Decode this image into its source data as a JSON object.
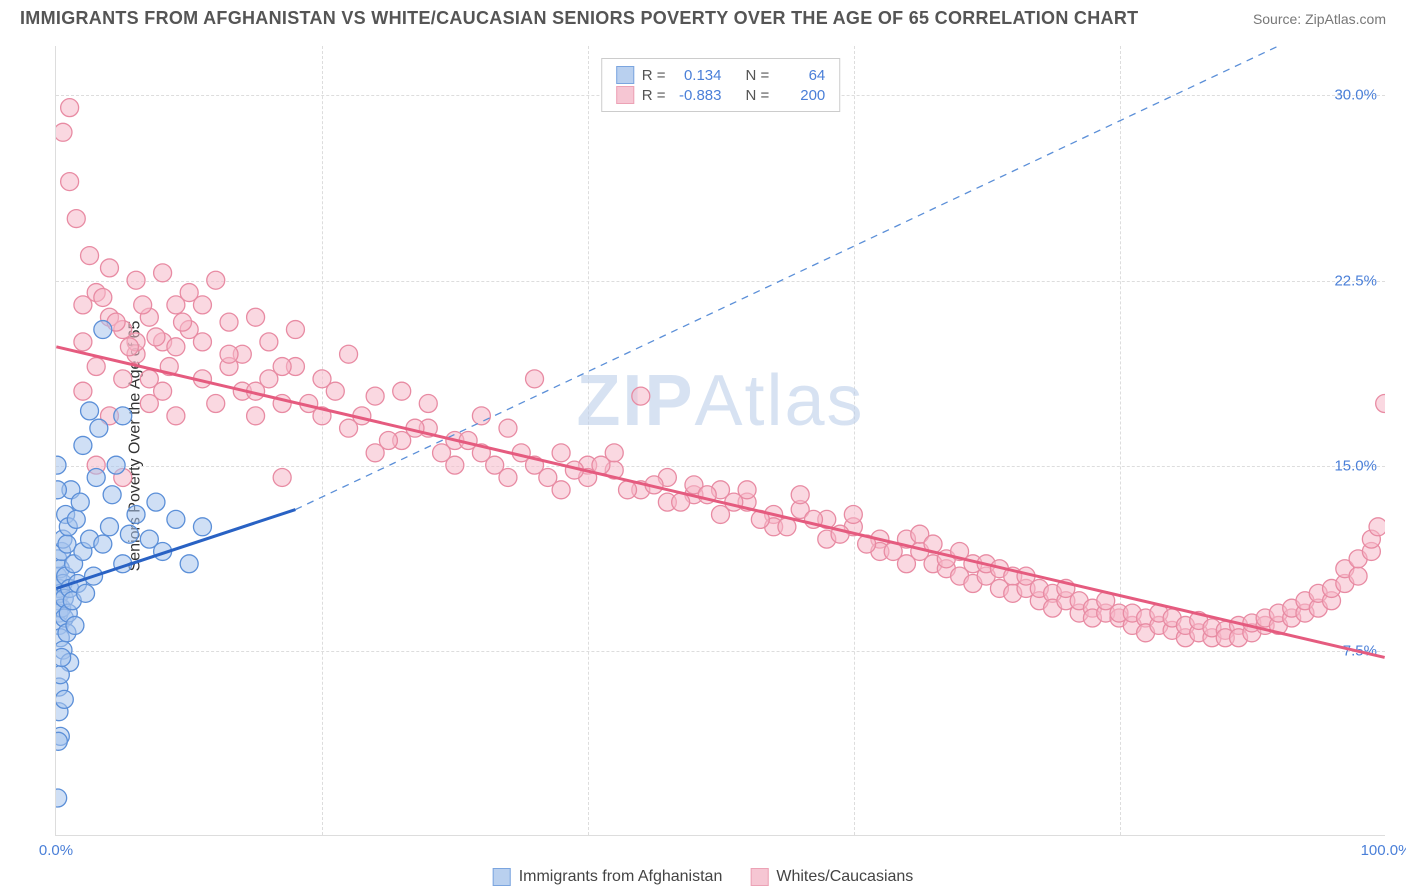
{
  "title": "IMMIGRANTS FROM AFGHANISTAN VS WHITE/CAUCASIAN SENIORS POVERTY OVER THE AGE OF 65 CORRELATION CHART",
  "source_label": "Source: ZipAtlas.com",
  "y_axis_label": "Seniors Poverty Over the Age of 65",
  "watermark_bold": "ZIP",
  "watermark_light": "Atlas",
  "chart": {
    "type": "scatter",
    "xlim": [
      0,
      100
    ],
    "ylim": [
      0,
      32
    ],
    "x_ticks": [
      0,
      20,
      40,
      60,
      80,
      100
    ],
    "x_tick_labels": {
      "0": "0.0%",
      "100": "100.0%"
    },
    "y_ticks": [
      7.5,
      15.0,
      22.5,
      30.0
    ],
    "y_tick_labels": [
      "7.5%",
      "15.0%",
      "22.5%",
      "30.0%"
    ],
    "grid_color": "#dddddd",
    "background_color": "#ffffff",
    "series": [
      {
        "name": "Immigrants from Afghanistan",
        "legend_label": "Immigrants from Afghanistan",
        "marker_color": "#5b8fd8",
        "marker_fill": "#a8c5ec",
        "marker_fill_opacity": 0.55,
        "marker_radius": 9,
        "stats": {
          "R": "0.134",
          "N": "64"
        },
        "trend_solid": {
          "x1": 0,
          "y1": 10.0,
          "x2": 18,
          "y2": 13.2,
          "color": "#2962c4",
          "width": 3
        },
        "trend_dashed": {
          "x1": 18,
          "y1": 13.2,
          "x2": 92,
          "y2": 32.0,
          "color": "#5b8fd8",
          "width": 1.3,
          "dash": "7 6"
        },
        "points": [
          [
            0.1,
            10.5
          ],
          [
            0.1,
            9.5
          ],
          [
            0.1,
            11.2
          ],
          [
            0.2,
            9.0
          ],
          [
            0.2,
            10.0
          ],
          [
            0.2,
            8.5
          ],
          [
            0.3,
            9.8
          ],
          [
            0.3,
            10.8
          ],
          [
            0.3,
            8.0
          ],
          [
            0.4,
            11.5
          ],
          [
            0.4,
            9.2
          ],
          [
            0.5,
            10.2
          ],
          [
            0.5,
            12.0
          ],
          [
            0.5,
            7.5
          ],
          [
            0.6,
            8.8
          ],
          [
            0.6,
            9.6
          ],
          [
            0.7,
            13.0
          ],
          [
            0.7,
            10.5
          ],
          [
            0.8,
            11.8
          ],
          [
            0.8,
            8.2
          ],
          [
            0.9,
            9.0
          ],
          [
            0.9,
            12.5
          ],
          [
            1.0,
            10.0
          ],
          [
            1.0,
            7.0
          ],
          [
            1.1,
            14.0
          ],
          [
            1.2,
            9.5
          ],
          [
            1.3,
            11.0
          ],
          [
            1.4,
            8.5
          ],
          [
            1.5,
            12.8
          ],
          [
            1.6,
            10.2
          ],
          [
            1.8,
            13.5
          ],
          [
            2.0,
            11.5
          ],
          [
            2.0,
            15.8
          ],
          [
            2.2,
            9.8
          ],
          [
            2.5,
            12.0
          ],
          [
            2.5,
            17.2
          ],
          [
            2.8,
            10.5
          ],
          [
            3.0,
            14.5
          ],
          [
            3.2,
            16.5
          ],
          [
            3.5,
            11.8
          ],
          [
            3.5,
            20.5
          ],
          [
            4.0,
            12.5
          ],
          [
            4.2,
            13.8
          ],
          [
            4.5,
            15.0
          ],
          [
            5.0,
            11.0
          ],
          [
            5.0,
            17.0
          ],
          [
            5.5,
            12.2
          ],
          [
            6.0,
            13.0
          ],
          [
            7.0,
            12.0
          ],
          [
            7.5,
            13.5
          ],
          [
            8.0,
            11.5
          ],
          [
            9.0,
            12.8
          ],
          [
            10.0,
            11.0
          ],
          [
            11.0,
            12.5
          ],
          [
            0.2,
            6.0
          ],
          [
            0.3,
            6.5
          ],
          [
            0.4,
            7.2
          ],
          [
            0.2,
            5.0
          ],
          [
            0.3,
            4.0
          ],
          [
            0.15,
            3.8
          ],
          [
            0.6,
            5.5
          ],
          [
            0.1,
            1.5
          ],
          [
            0.05,
            15.0
          ],
          [
            0.08,
            14.0
          ]
        ]
      },
      {
        "name": "Whites/Caucasians",
        "legend_label": "Whites/Caucasians",
        "marker_color": "#e88ba3",
        "marker_fill": "#f5b8c9",
        "marker_fill_opacity": 0.55,
        "marker_radius": 9,
        "stats": {
          "R": "-0.883",
          "N": "200"
        },
        "trend_solid": {
          "x1": 0,
          "y1": 19.8,
          "x2": 100,
          "y2": 7.2,
          "color": "#e55b7f",
          "width": 3
        },
        "points": [
          [
            1,
            29.5
          ],
          [
            1,
            26.5
          ],
          [
            2,
            21.5
          ],
          [
            2,
            20.0
          ],
          [
            3,
            22.0
          ],
          [
            3,
            19.0
          ],
          [
            4,
            21.0
          ],
          [
            4,
            23.0
          ],
          [
            5,
            20.5
          ],
          [
            5,
            18.5
          ],
          [
            6,
            22.5
          ],
          [
            6,
            19.5
          ],
          [
            7,
            21.0
          ],
          [
            7,
            17.5
          ],
          [
            8,
            20.0
          ],
          [
            8,
            22.8
          ],
          [
            9,
            19.8
          ],
          [
            9,
            17.0
          ],
          [
            10,
            20.5
          ],
          [
            10,
            22.0
          ],
          [
            11,
            18.5
          ],
          [
            11,
            21.5
          ],
          [
            12,
            22.5
          ],
          [
            12,
            17.5
          ],
          [
            13,
            19.0
          ],
          [
            13,
            20.8
          ],
          [
            14,
            18.0
          ],
          [
            14,
            19.5
          ],
          [
            15,
            21.0
          ],
          [
            15,
            17.0
          ],
          [
            16,
            20.0
          ],
          [
            16,
            18.5
          ],
          [
            17,
            17.5
          ],
          [
            17,
            14.5
          ],
          [
            18,
            19.0
          ],
          [
            18,
            20.5
          ],
          [
            20,
            18.5
          ],
          [
            20,
            17.0
          ],
          [
            22,
            19.5
          ],
          [
            22,
            16.5
          ],
          [
            24,
            17.8
          ],
          [
            24,
            15.5
          ],
          [
            26,
            18.0
          ],
          [
            26,
            16.0
          ],
          [
            28,
            16.5
          ],
          [
            28,
            17.5
          ],
          [
            30,
            16.0
          ],
          [
            30,
            15.0
          ],
          [
            32,
            17.0
          ],
          [
            32,
            15.5
          ],
          [
            34,
            16.5
          ],
          [
            34,
            14.5
          ],
          [
            36,
            15.0
          ],
          [
            36,
            18.5
          ],
          [
            38,
            15.5
          ],
          [
            38,
            14.0
          ],
          [
            40,
            15.0
          ],
          [
            40,
            14.5
          ],
          [
            42,
            14.8
          ],
          [
            42,
            15.5
          ],
          [
            44,
            17.8
          ],
          [
            44,
            14.0
          ],
          [
            46,
            14.5
          ],
          [
            46,
            13.5
          ],
          [
            48,
            13.8
          ],
          [
            48,
            14.2
          ],
          [
            50,
            14.0
          ],
          [
            50,
            13.0
          ],
          [
            52,
            13.5
          ],
          [
            52,
            14.0
          ],
          [
            54,
            13.0
          ],
          [
            54,
            12.5
          ],
          [
            56,
            13.2
          ],
          [
            56,
            13.8
          ],
          [
            58,
            12.8
          ],
          [
            58,
            12.0
          ],
          [
            60,
            12.5
          ],
          [
            60,
            13.0
          ],
          [
            62,
            12.0
          ],
          [
            62,
            11.5
          ],
          [
            64,
            12.0
          ],
          [
            64,
            11.0
          ],
          [
            65,
            11.5
          ],
          [
            65,
            12.2
          ],
          [
            66,
            11.0
          ],
          [
            66,
            11.8
          ],
          [
            67,
            10.8
          ],
          [
            67,
            11.2
          ],
          [
            68,
            11.5
          ],
          [
            68,
            10.5
          ],
          [
            69,
            11.0
          ],
          [
            69,
            10.2
          ],
          [
            70,
            10.5
          ],
          [
            70,
            11.0
          ],
          [
            71,
            10.0
          ],
          [
            71,
            10.8
          ],
          [
            72,
            10.5
          ],
          [
            72,
            9.8
          ],
          [
            73,
            10.0
          ],
          [
            73,
            10.5
          ],
          [
            74,
            9.5
          ],
          [
            74,
            10.0
          ],
          [
            75,
            9.8
          ],
          [
            75,
            9.2
          ],
          [
            76,
            9.5
          ],
          [
            76,
            10.0
          ],
          [
            77,
            9.0
          ],
          [
            77,
            9.5
          ],
          [
            78,
            9.2
          ],
          [
            78,
            8.8
          ],
          [
            79,
            9.0
          ],
          [
            79,
            9.5
          ],
          [
            80,
            8.8
          ],
          [
            80,
            9.0
          ],
          [
            81,
            8.5
          ],
          [
            81,
            9.0
          ],
          [
            82,
            8.8
          ],
          [
            82,
            8.2
          ],
          [
            83,
            8.5
          ],
          [
            83,
            9.0
          ],
          [
            84,
            8.3
          ],
          [
            84,
            8.8
          ],
          [
            85,
            8.0
          ],
          [
            85,
            8.5
          ],
          [
            86,
            8.2
          ],
          [
            86,
            8.7
          ],
          [
            87,
            8.0
          ],
          [
            87,
            8.4
          ],
          [
            88,
            8.3
          ],
          [
            88,
            8.0
          ],
          [
            89,
            8.5
          ],
          [
            89,
            8.0
          ],
          [
            90,
            8.2
          ],
          [
            90,
            8.6
          ],
          [
            91,
            8.5
          ],
          [
            91,
            8.8
          ],
          [
            92,
            8.5
          ],
          [
            92,
            9.0
          ],
          [
            93,
            8.8
          ],
          [
            93,
            9.2
          ],
          [
            94,
            9.0
          ],
          [
            94,
            9.5
          ],
          [
            95,
            9.2
          ],
          [
            95,
            9.8
          ],
          [
            96,
            9.5
          ],
          [
            96,
            10.0
          ],
          [
            97,
            10.2
          ],
          [
            97,
            10.8
          ],
          [
            98,
            10.5
          ],
          [
            98,
            11.2
          ],
          [
            99,
            11.5
          ],
          [
            99,
            12.0
          ],
          [
            99.5,
            12.5
          ],
          [
            100,
            17.5
          ],
          [
            3,
            15.0
          ],
          [
            5,
            14.5
          ],
          [
            7,
            18.5
          ],
          [
            9,
            21.5
          ],
          [
            2,
            18.0
          ],
          [
            4,
            17.0
          ],
          [
            6,
            20.0
          ],
          [
            8,
            18.0
          ],
          [
            11,
            20.0
          ],
          [
            13,
            19.5
          ],
          [
            15,
            18.0
          ],
          [
            17,
            19.0
          ],
          [
            19,
            17.5
          ],
          [
            21,
            18.0
          ],
          [
            23,
            17.0
          ],
          [
            25,
            16.0
          ],
          [
            27,
            16.5
          ],
          [
            29,
            15.5
          ],
          [
            31,
            16.0
          ],
          [
            33,
            15.0
          ],
          [
            35,
            15.5
          ],
          [
            37,
            14.5
          ],
          [
            39,
            14.8
          ],
          [
            41,
            15.0
          ],
          [
            43,
            14.0
          ],
          [
            45,
            14.2
          ],
          [
            47,
            13.5
          ],
          [
            49,
            13.8
          ],
          [
            51,
            13.5
          ],
          [
            53,
            12.8
          ],
          [
            55,
            12.5
          ],
          [
            57,
            12.8
          ],
          [
            59,
            12.2
          ],
          [
            61,
            11.8
          ],
          [
            63,
            11.5
          ],
          [
            0.5,
            28.5
          ],
          [
            1.5,
            25.0
          ],
          [
            2.5,
            23.5
          ],
          [
            3.5,
            21.8
          ],
          [
            4.5,
            20.8
          ],
          [
            5.5,
            19.8
          ],
          [
            6.5,
            21.5
          ],
          [
            7.5,
            20.2
          ],
          [
            8.5,
            19.0
          ],
          [
            9.5,
            20.8
          ]
        ]
      }
    ]
  },
  "legend_top_rows": [
    {
      "r_label": "R =",
      "n_label": "N ="
    }
  ]
}
